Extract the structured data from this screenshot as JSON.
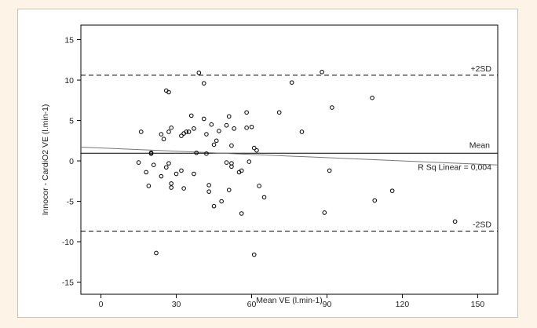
{
  "chart_data": {
    "type": "scatter",
    "title": "",
    "xlabel": "Mean VE (l.min-1)",
    "ylabel": "Innocor - CardiO2 VE (l.min-1)",
    "xlim": [
      -8,
      158
    ],
    "ylim": [
      -16.5,
      16.8
    ],
    "x_ticks": [
      0,
      30,
      60,
      90,
      120,
      150
    ],
    "y_ticks": [
      -15,
      -10,
      -5,
      0,
      5,
      10,
      15
    ],
    "grid": false,
    "reference_lines": [
      {
        "name": "upper_limit",
        "label": "+2SD",
        "y": 10.6,
        "style": "dashed"
      },
      {
        "name": "mean",
        "label": "Mean",
        "y": 0.95,
        "style": "solid"
      },
      {
        "name": "lower_limit",
        "label": "-2SD",
        "y": -8.7,
        "style": "dashed"
      }
    ],
    "regression_line": {
      "label": "R Sq Linear = 0,004",
      "x": [
        -8,
        158
      ],
      "y": [
        1.7,
        -0.5
      ]
    },
    "points": [
      [
        15,
        -0.2
      ],
      [
        16,
        3.6
      ],
      [
        18,
        -1.4
      ],
      [
        19,
        -3.1
      ],
      [
        20,
        0.9
      ],
      [
        20,
        1.0
      ],
      [
        21,
        -0.5
      ],
      [
        22,
        -11.4
      ],
      [
        24,
        3.3
      ],
      [
        24,
        -1.9
      ],
      [
        25,
        2.7
      ],
      [
        26,
        -0.8
      ],
      [
        26,
        8.7
      ],
      [
        27,
        -0.3
      ],
      [
        27,
        8.5
      ],
      [
        27,
        3.6
      ],
      [
        28,
        4.1
      ],
      [
        28,
        -3.3
      ],
      [
        28,
        -2.8
      ],
      [
        30,
        -1.6
      ],
      [
        32,
        3.1
      ],
      [
        32,
        -1.2
      ],
      [
        33,
        3.4
      ],
      [
        33,
        -3.4
      ],
      [
        34,
        3.6
      ],
      [
        35,
        3.6
      ],
      [
        36,
        5.6
      ],
      [
        37,
        4.0
      ],
      [
        37,
        -1.6
      ],
      [
        38,
        1.0
      ],
      [
        39,
        10.9
      ],
      [
        41,
        9.6
      ],
      [
        41,
        5.2
      ],
      [
        42,
        3.3
      ],
      [
        42,
        0.9
      ],
      [
        43,
        -3.0
      ],
      [
        43,
        -3.8
      ],
      [
        44,
        4.5
      ],
      [
        45,
        2.0
      ],
      [
        45,
        -5.6
      ],
      [
        46,
        2.5
      ],
      [
        47,
        3.7
      ],
      [
        48,
        -5.0
      ],
      [
        50,
        -0.2
      ],
      [
        50,
        4.4
      ],
      [
        51,
        -3.6
      ],
      [
        51,
        5.5
      ],
      [
        52,
        1.9
      ],
      [
        52,
        -0.3
      ],
      [
        52,
        -0.7
      ],
      [
        53,
        4.0
      ],
      [
        55,
        -1.4
      ],
      [
        56,
        -1.2
      ],
      [
        56,
        -6.5
      ],
      [
        58,
        6.0
      ],
      [
        58,
        4.1
      ],
      [
        59,
        -0.1
      ],
      [
        60,
        4.2
      ],
      [
        61,
        -11.6
      ],
      [
        61,
        1.6
      ],
      [
        62,
        1.3
      ],
      [
        63,
        -3.1
      ],
      [
        65,
        -4.5
      ],
      [
        71,
        6.0
      ],
      [
        76,
        9.7
      ],
      [
        80,
        3.6
      ],
      [
        88,
        11.0
      ],
      [
        89,
        -6.4
      ],
      [
        91,
        -1.2
      ],
      [
        92,
        6.6
      ],
      [
        108,
        7.8
      ],
      [
        109,
        -4.9
      ],
      [
        116,
        -3.7
      ],
      [
        141,
        -7.5
      ]
    ]
  }
}
